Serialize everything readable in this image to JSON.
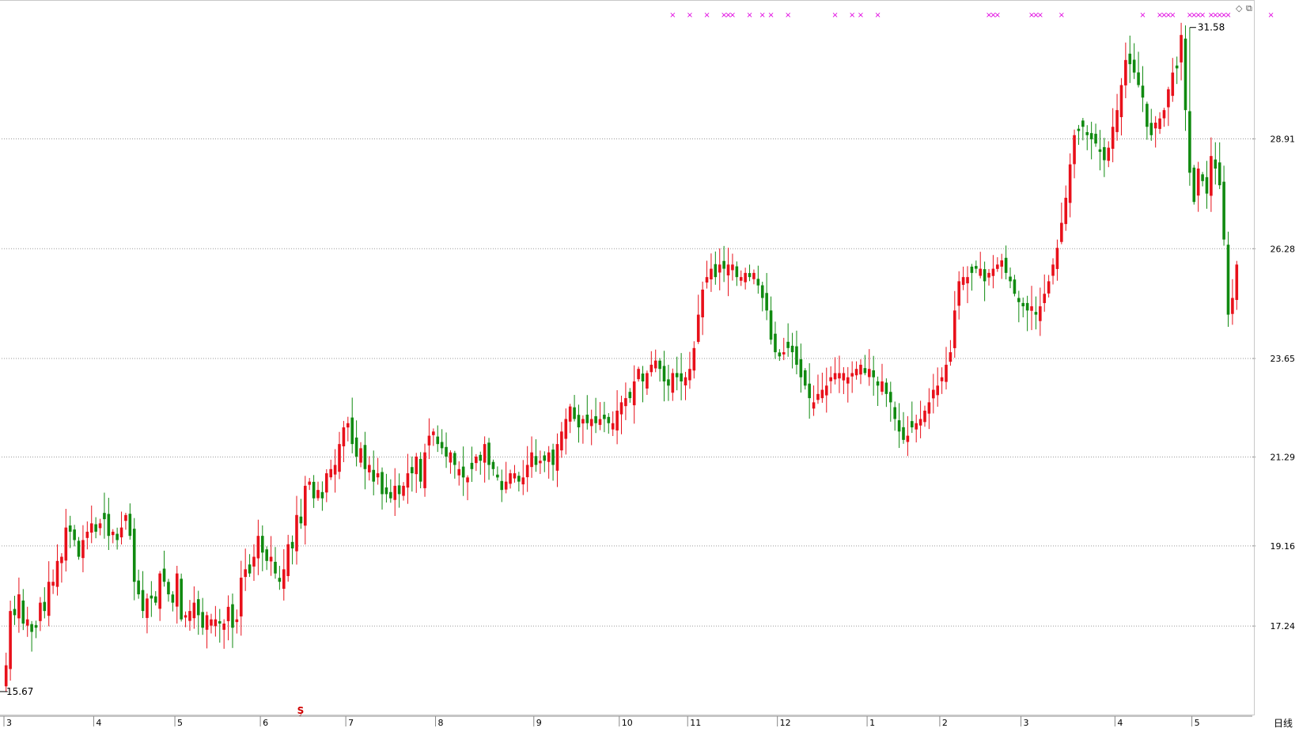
{
  "period_label": "日线",
  "icons": [
    "diamond-icon",
    "restore-window-icon"
  ],
  "colors": {
    "up": "#e8101a",
    "down": "#108a10",
    "grid": "#9a9a9a",
    "marker": "#e000e0",
    "signal": "#d00000"
  },
  "price_axis": {
    "ticks": [
      "17.24",
      "19.16",
      "21.29",
      "23.65",
      "26.28",
      "28.91"
    ]
  },
  "annotations": {
    "high_label": "31.58",
    "low_label": "15.67",
    "signal_glyph": "Ş"
  },
  "chart_data": {
    "type": "candlestick",
    "title": "",
    "ylim": [
      15.1,
      32.2
    ],
    "gridlines": [
      17.24,
      19.16,
      21.29,
      23.65,
      26.28,
      28.91
    ],
    "month_labels": [
      "3",
      "4",
      "5",
      "6",
      "7",
      "8",
      "9",
      "10",
      "11",
      "12",
      "1",
      "2",
      "3",
      "4",
      "5"
    ],
    "month_start_index": [
      0,
      21,
      40,
      60,
      80,
      101,
      124,
      144,
      160,
      181,
      202,
      219,
      238,
      260,
      278
    ],
    "closes": [
      16.3,
      17.6,
      17.5,
      18.0,
      17.3,
      17.4,
      17.1,
      17.2,
      17.8,
      17.6,
      18.3,
      18.3,
      18.8,
      18.9,
      19.6,
      19.5,
      19.3,
      18.9,
      19.3,
      19.5,
      19.7,
      19.5,
      19.7,
      19.8,
      19.4,
      19.5,
      19.3,
      19.6,
      19.9,
      19.4,
      18.3,
      18.0,
      17.6,
      17.9,
      17.9,
      17.8,
      18.5,
      18.3,
      18.0,
      17.8,
      18.5,
      17.4,
      17.5,
      17.6,
      17.8,
      17.5,
      17.2,
      17.5,
      17.4,
      17.4,
      17.3,
      17.3,
      17.7,
      17.2,
      17.4,
      18.4,
      18.6,
      18.5,
      18.9,
      19.4,
      19.0,
      18.8,
      18.9,
      18.5,
      18.3,
      18.6,
      19.2,
      19.1,
      19.9,
      19.7,
      20.6,
      20.7,
      20.3,
      20.5,
      20.3,
      20.9,
      21.0,
      21.1,
      21.6,
      22.0,
      22.1,
      21.6,
      21.3,
      21.5,
      21.0,
      21.1,
      20.7,
      20.9,
      20.4,
      20.4,
      20.3,
      20.6,
      20.4,
      20.6,
      20.9,
      20.9,
      21.3,
      20.7,
      21.4,
      21.8,
      21.9,
      21.6,
      21.5,
      21.3,
      21.4,
      21.1,
      21.0,
      20.8,
      20.8,
      21.0,
      21.3,
      21.2,
      21.6,
      21.1,
      21.0,
      20.8,
      20.5,
      20.7,
      20.9,
      20.9,
      20.7,
      20.8,
      21.1,
      21.4,
      21.1,
      21.2,
      21.2,
      21.4,
      21.1,
      21.6,
      21.9,
      22.2,
      22.5,
      22.2,
      22.0,
      22.2,
      22.1,
      22.2,
      22.1,
      22.2,
      22.2,
      22.1,
      22.1,
      22.4,
      22.6,
      22.7,
      22.7,
      23.1,
      23.4,
      23.1,
      23.3,
      23.5,
      23.6,
      23.4,
      23.1,
      23.0,
      23.3,
      23.2,
      23.1,
      23.2,
      23.4,
      23.9,
      24.7,
      25.3,
      25.6,
      25.8,
      25.6,
      25.9,
      25.8,
      25.9,
      25.9,
      25.6,
      25.6,
      25.7,
      25.6,
      25.7,
      25.4,
      25.1,
      24.8,
      24.1,
      23.8,
      23.7,
      23.8,
      23.9,
      23.8,
      23.5,
      23.2,
      23.0,
      22.7,
      22.6,
      22.8,
      22.9,
      23.0,
      23.2,
      23.3,
      23.3,
      23.3,
      23.2,
      23.3,
      23.4,
      23.5,
      23.3,
      23.4,
      23.2,
      23.0,
      23.1,
      22.8,
      22.6,
      22.2,
      21.9,
      21.7,
      21.8,
      22.0,
      22.1,
      22.2,
      22.4,
      22.6,
      22.9,
      23.0,
      23.2,
      23.5,
      23.8,
      24.8,
      25.5,
      25.6,
      25.6,
      25.7,
      25.8,
      25.8,
      25.5,
      25.7,
      25.8,
      25.9,
      26.0,
      25.7,
      25.5,
      25.2,
      25.0,
      24.9,
      24.8,
      24.9,
      24.7,
      24.9,
      25.2,
      25.5,
      25.9,
      26.3,
      26.9,
      27.5,
      28.3,
      29.0,
      29.1,
      29.2,
      29.0,
      28.9,
      28.8,
      28.6,
      28.4,
      28.7,
      29.2,
      29.6,
      30.2,
      30.8,
      30.7,
      30.5,
      30.2,
      29.9,
      29.2,
      29.0,
      29.3,
      29.4,
      29.6,
      30.1,
      30.5,
      30.6,
      31.4,
      29.6,
      28.1,
      27.4,
      28.2,
      27.9,
      27.6,
      28.5,
      28.2,
      27.8,
      26.5,
      24.7,
      25.1,
      25.9
    ]
  }
}
